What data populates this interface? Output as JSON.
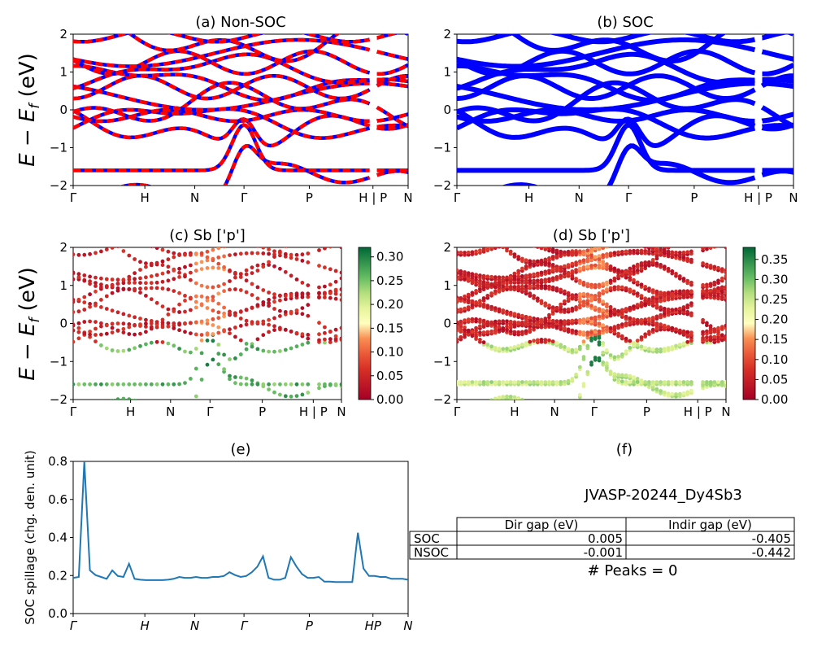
{
  "figure_id": "JVASP-20244_Dy4Sb3",
  "peaks_text": "# Peaks = 0",
  "energy_ylabel": "E − E_f (eV)",
  "colors": {
    "nsoc_a": "#ff0000",
    "nsoc_b": "#0000ff",
    "soc": "#0000ff",
    "spillage": "#1f77b4"
  },
  "chart_data": [
    {
      "id": "a",
      "type": "line",
      "title": "(a) Non-SOC",
      "xticks": [
        "Γ",
        "H",
        "N",
        "Γ",
        "P",
        "H | P",
        "N"
      ],
      "yticks": [
        "−2",
        "−1",
        "0",
        "1",
        "2"
      ],
      "ylim": [
        -2,
        2
      ],
      "note": "band structure drawn with red/blue dashed lines"
    },
    {
      "id": "b",
      "type": "line",
      "title": "(b) SOC",
      "xticks": [
        "Γ",
        "H",
        "N",
        "Γ",
        "P",
        "H | P",
        "N"
      ],
      "yticks": [
        "−2",
        "−1",
        "0",
        "1",
        "2"
      ],
      "ylim": [
        -2,
        2
      ]
    },
    {
      "id": "c",
      "type": "scatter",
      "title": "(c)  Sb ['p']",
      "xticks": [
        "Γ",
        "H",
        "N",
        "Γ",
        "P",
        "H | P",
        "N"
      ],
      "yticks": [
        "−2",
        "−1",
        "0",
        "1",
        "2"
      ],
      "ylim": [
        -2,
        2
      ],
      "colorbar_ticks": [
        "0.00",
        "0.05",
        "0.10",
        "0.15",
        "0.20",
        "0.25",
        "0.30"
      ],
      "colorbar_range": [
        0,
        0.32
      ]
    },
    {
      "id": "d",
      "type": "scatter",
      "title": "(d) Sb ['p']",
      "xticks": [
        "Γ",
        "H",
        "N",
        "Γ",
        "P",
        "H | P",
        "N"
      ],
      "yticks": [
        "−2",
        "−1",
        "0",
        "1",
        "2"
      ],
      "ylim": [
        -2,
        2
      ],
      "colorbar_ticks": [
        "0.00",
        "0.05",
        "0.10",
        "0.15",
        "0.20",
        "0.25",
        "0.30",
        "0.35"
      ],
      "colorbar_range": [
        0,
        0.38
      ]
    },
    {
      "id": "e",
      "type": "line",
      "title": "(e)",
      "ylabel": "SOC spillage (chg. den. unit)",
      "xticks": [
        "Γ",
        "H",
        "N",
        "Γ",
        "P",
        "HP",
        "N"
      ],
      "yticks": [
        "0.0",
        "0.2",
        "0.4",
        "0.6",
        "0.8"
      ],
      "ylim": [
        0,
        0.81
      ],
      "x": [
        0,
        1,
        2,
        3,
        4,
        5,
        6,
        7,
        8,
        9,
        10,
        11,
        12,
        13,
        14,
        15,
        16,
        17,
        18,
        19,
        20,
        21,
        22,
        23,
        24,
        25,
        26,
        27,
        28,
        29,
        30,
        31,
        32,
        33,
        34,
        35,
        36,
        37,
        38,
        39,
        40,
        41,
        42,
        43,
        44,
        45,
        46,
        47,
        48,
        49,
        50,
        51,
        52,
        53,
        54,
        55,
        56,
        57,
        58,
        59,
        60
      ],
      "values": [
        0.19,
        0.195,
        0.81,
        0.23,
        0.205,
        0.195,
        0.185,
        0.23,
        0.2,
        0.195,
        0.265,
        0.185,
        0.18,
        0.178,
        0.178,
        0.178,
        0.178,
        0.18,
        0.185,
        0.195,
        0.19,
        0.19,
        0.195,
        0.19,
        0.19,
        0.195,
        0.195,
        0.2,
        0.22,
        0.205,
        0.195,
        0.2,
        0.22,
        0.25,
        0.305,
        0.19,
        0.18,
        0.18,
        0.19,
        0.3,
        0.25,
        0.21,
        0.19,
        0.19,
        0.195,
        0.17,
        0.17,
        0.168,
        0.168,
        0.168,
        0.168,
        0.43,
        0.24,
        0.2,
        0.2,
        0.195,
        0.195,
        0.185,
        0.185,
        0.185,
        0.18
      ]
    },
    {
      "id": "f",
      "type": "table",
      "title": "(f)",
      "columns": [
        "",
        "Dir gap (eV)",
        "Indir gap (eV)"
      ],
      "rows": [
        [
          "SOC",
          "0.005",
          "-0.405"
        ],
        [
          "NSOC",
          "-0.001",
          "-0.442"
        ]
      ]
    }
  ]
}
